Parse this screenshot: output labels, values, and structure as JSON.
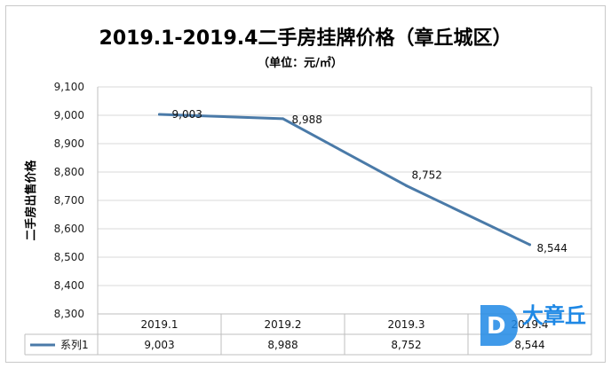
{
  "chart_data": {
    "type": "line",
    "title": "2019.1-2019.4二手房挂牌价格（章丘城区）",
    "subtitle": "（单位：元/㎡）",
    "xlabel": "",
    "ylabel": "二手房出售价格",
    "ylim": [
      8300,
      9100
    ],
    "ytick_step": 100,
    "yticks": [
      "8,300",
      "8,400",
      "8,500",
      "8,600",
      "8,700",
      "8,800",
      "8,900",
      "9,000",
      "9,100"
    ],
    "categories": [
      "2019.1",
      "2019.2",
      "2019.3",
      "2019.4"
    ],
    "series": [
      {
        "name": "系列1",
        "values": [
          9003,
          8988,
          8752,
          8544
        ],
        "labels": [
          "9,003",
          "8,988",
          "8,752",
          "8,544"
        ],
        "color": "#4a7aa8"
      }
    ],
    "grid": true,
    "legend": "data-table-bottom"
  },
  "watermark": {
    "text": "大章丘",
    "badge": "D",
    "color": "#1e88e5"
  }
}
